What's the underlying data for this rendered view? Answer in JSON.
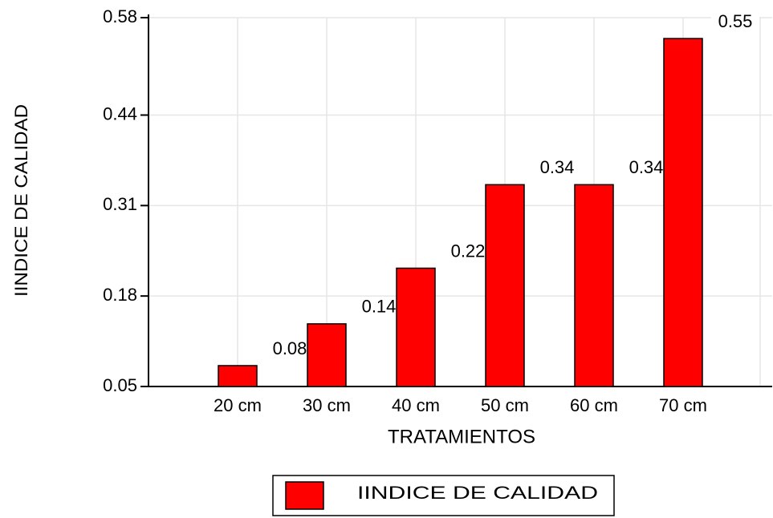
{
  "chart_data": {
    "type": "bar",
    "x_label": "TRATAMIENTOS",
    "y_label": "IINDICE DE CALIDAD",
    "categories": [
      "20 cm",
      "30 cm",
      "40 cm",
      "50 cm",
      "60 cm",
      "70 cm"
    ],
    "series": [
      {
        "name": "IINDICE DE CALIDAD",
        "color": "#ff0000",
        "values": [
          0.08,
          0.14,
          0.22,
          0.34,
          0.34,
          0.55
        ]
      }
    ],
    "ylim": [
      0.05,
      0.58
    ],
    "yticks": [
      0.05,
      0.18,
      0.31,
      0.44,
      0.58
    ],
    "grid": true,
    "legend": "bottom"
  }
}
